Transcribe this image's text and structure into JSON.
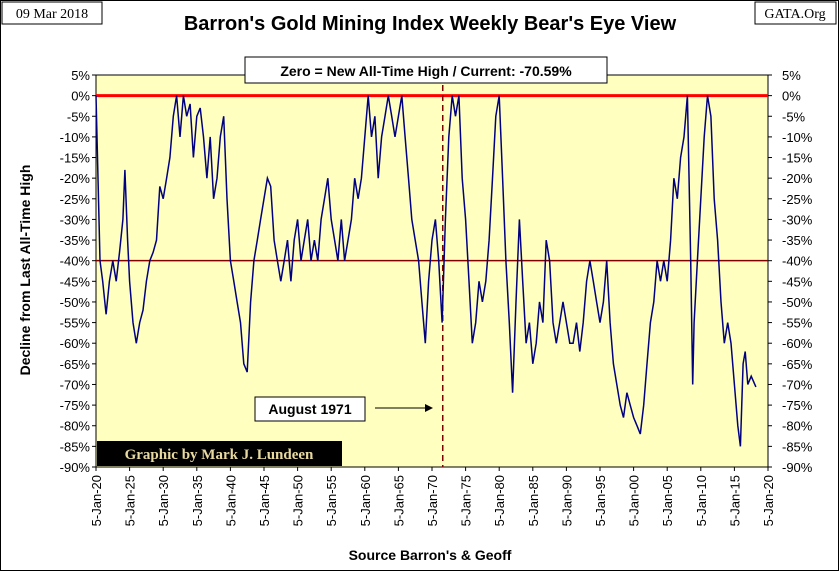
{
  "chart_data": {
    "type": "line",
    "title": "Barron's Gold Mining Index Weekly Bear's Eye View",
    "date_label": "09 Mar 2018",
    "source_site": "GATA.Org",
    "annotation": "Zero = New All-Time High / Current: -70.59%",
    "event_label": "August 1971",
    "credit": "Graphic by Mark J. Lundeen",
    "y_label": "Decline from Last All-Time High",
    "x_label": "Source Barron's & Geoff",
    "reference_lines": {
      "y": [
        0,
        -40
      ],
      "x": 1971.6
    },
    "xlim": [
      1920,
      2020
    ],
    "xticks": [
      {
        "value": 1920,
        "label": "5-Jan-20"
      },
      {
        "value": 1925,
        "label": "5-Jan-25"
      },
      {
        "value": 1930,
        "label": "5-Jan-30"
      },
      {
        "value": 1935,
        "label": "5-Jan-35"
      },
      {
        "value": 1940,
        "label": "5-Jan-40"
      },
      {
        "value": 1945,
        "label": "5-Jan-45"
      },
      {
        "value": 1950,
        "label": "5-Jan-50"
      },
      {
        "value": 1955,
        "label": "5-Jan-55"
      },
      {
        "value": 1960,
        "label": "5-Jan-60"
      },
      {
        "value": 1965,
        "label": "5-Jan-65"
      },
      {
        "value": 1970,
        "label": "5-Jan-70"
      },
      {
        "value": 1975,
        "label": "5-Jan-75"
      },
      {
        "value": 1980,
        "label": "5-Jan-80"
      },
      {
        "value": 1985,
        "label": "5-Jan-85"
      },
      {
        "value": 1990,
        "label": "5-Jan-90"
      },
      {
        "value": 1995,
        "label": "5-Jan-95"
      },
      {
        "value": 2000,
        "label": "5-Jan-00"
      },
      {
        "value": 2005,
        "label": "5-Jan-05"
      },
      {
        "value": 2010,
        "label": "5-Jan-10"
      },
      {
        "value": 2015,
        "label": "5-Jan-15"
      },
      {
        "value": 2020,
        "label": "5-Jan-20"
      }
    ],
    "ylim": [
      -90,
      5
    ],
    "yticks": [
      {
        "value": 5,
        "label": "5%"
      },
      {
        "value": 0,
        "label": "0%"
      },
      {
        "value": -5,
        "label": "-5%"
      },
      {
        "value": -10,
        "label": "-10%"
      },
      {
        "value": -15,
        "label": "-15%"
      },
      {
        "value": -20,
        "label": "-20%"
      },
      {
        "value": -25,
        "label": "-25%"
      },
      {
        "value": -30,
        "label": "-30%"
      },
      {
        "value": -35,
        "label": "-35%"
      },
      {
        "value": -40,
        "label": "-40%"
      },
      {
        "value": -45,
        "label": "-45%"
      },
      {
        "value": -50,
        "label": "-50%"
      },
      {
        "value": -55,
        "label": "-55%"
      },
      {
        "value": -60,
        "label": "-60%"
      },
      {
        "value": -65,
        "label": "-65%"
      },
      {
        "value": -70,
        "label": "-70%"
      },
      {
        "value": -75,
        "label": "-75%"
      },
      {
        "value": -80,
        "label": "-80%"
      },
      {
        "value": -85,
        "label": "-85%"
      },
      {
        "value": -90,
        "label": "-90%"
      }
    ],
    "color": "#000080",
    "x": [
      1920,
      1920.3,
      1920.6,
      1921,
      1921.5,
      1922,
      1922.5,
      1923,
      1923.5,
      1924,
      1924.3,
      1924.7,
      1925,
      1925.5,
      1926,
      1926.5,
      1927,
      1927.5,
      1928,
      1928.5,
      1929,
      1929.5,
      1930,
      1930.5,
      1931,
      1931.5,
      1932,
      1932.5,
      1933,
      1933.5,
      1934,
      1934.5,
      1935,
      1935.5,
      1936,
      1936.5,
      1937,
      1937.5,
      1938,
      1938.5,
      1939,
      1939.5,
      1940,
      1940.5,
      1941,
      1941.5,
      1942,
      1942.5,
      1943,
      1943.5,
      1944,
      1944.5,
      1945,
      1945.5,
      1946,
      1946.5,
      1947,
      1947.5,
      1948,
      1948.5,
      1949,
      1949.5,
      1950,
      1950.5,
      1951,
      1951.5,
      1952,
      1952.5,
      1953,
      1953.5,
      1954,
      1954.5,
      1955,
      1955.5,
      1956,
      1956.5,
      1957,
      1957.5,
      1958,
      1958.5,
      1959,
      1959.5,
      1960,
      1960.5,
      1961,
      1961.5,
      1962,
      1962.5,
      1963,
      1963.5,
      1964,
      1964.5,
      1965,
      1965.5,
      1966,
      1966.5,
      1967,
      1967.5,
      1968,
      1968.5,
      1969,
      1969.5,
      1970,
      1970.5,
      1971,
      1971.5,
      1972,
      1972.5,
      1973,
      1973.5,
      1974,
      1974.5,
      1975,
      1975.5,
      1976,
      1976.5,
      1977,
      1977.5,
      1978,
      1978.5,
      1979,
      1979.5,
      1980,
      1980.5,
      1981,
      1981.5,
      1982,
      1982.5,
      1983,
      1983.5,
      1984,
      1984.5,
      1985,
      1985.5,
      1986,
      1986.5,
      1987,
      1987.5,
      1988,
      1988.5,
      1989,
      1989.5,
      1990,
      1990.5,
      1991,
      1991.5,
      1992,
      1992.5,
      1993,
      1993.5,
      1994,
      1994.5,
      1995,
      1995.5,
      1996,
      1996.5,
      1997,
      1997.5,
      1998,
      1998.5,
      1999,
      1999.5,
      2000,
      2000.5,
      2001,
      2001.5,
      2002,
      2002.5,
      2003,
      2003.5,
      2004,
      2004.5,
      2005,
      2005.5,
      2006,
      2006.5,
      2007,
      2007.5,
      2008,
      2008.5,
      2008.8,
      2009,
      2009.5,
      2010,
      2010.5,
      2011,
      2011.5,
      2012,
      2012.5,
      2013,
      2013.5,
      2014,
      2014.5,
      2015,
      2015.5,
      2015.9,
      2016.3,
      2016.6,
      2017,
      2017.5,
      2018.2
    ],
    "values": [
      0,
      -20,
      -40,
      -45,
      -53,
      -45,
      -40,
      -45,
      -38,
      -30,
      -18,
      -35,
      -45,
      -55,
      -60,
      -55,
      -52,
      -45,
      -40,
      -38,
      -35,
      -22,
      -25,
      -20,
      -15,
      -5,
      0,
      -10,
      0,
      -5,
      -2,
      -15,
      -5,
      -3,
      -10,
      -20,
      -10,
      -25,
      -20,
      -10,
      -5,
      -25,
      -40,
      -45,
      -50,
      -55,
      -65,
      -67,
      -50,
      -40,
      -35,
      -30,
      -25,
      -20,
      -22,
      -35,
      -40,
      -45,
      -40,
      -35,
      -45,
      -35,
      -30,
      -40,
      -35,
      -30,
      -40,
      -35,
      -40,
      -30,
      -25,
      -20,
      -30,
      -35,
      -40,
      -30,
      -40,
      -35,
      -30,
      -20,
      -25,
      -20,
      -10,
      0,
      -10,
      -5,
      -20,
      -10,
      -5,
      0,
      -5,
      -10,
      -5,
      0,
      -10,
      -20,
      -30,
      -35,
      -40,
      -50,
      -60,
      -45,
      -35,
      -30,
      -40,
      -55,
      -30,
      -10,
      0,
      -5,
      0,
      -20,
      -30,
      -45,
      -60,
      -55,
      -45,
      -50,
      -45,
      -35,
      -20,
      -5,
      0,
      -20,
      -40,
      -55,
      -72,
      -50,
      -30,
      -45,
      -60,
      -55,
      -65,
      -60,
      -50,
      -55,
      -35,
      -40,
      -55,
      -60,
      -55,
      -50,
      -55,
      -60,
      -60,
      -55,
      -62,
      -55,
      -45,
      -40,
      -45,
      -50,
      -55,
      -50,
      -40,
      -55,
      -65,
      -70,
      -75,
      -78,
      -72,
      -75,
      -78,
      -80,
      -82,
      -75,
      -65,
      -55,
      -50,
      -40,
      -45,
      -40,
      -45,
      -35,
      -20,
      -25,
      -15,
      -10,
      0,
      -40,
      -70,
      -55,
      -40,
      -25,
      -10,
      0,
      -5,
      -25,
      -35,
      -50,
      -60,
      -55,
      -60,
      -70,
      -80,
      -85,
      -65,
      -62,
      -70,
      -68,
      -70.59
    ]
  }
}
